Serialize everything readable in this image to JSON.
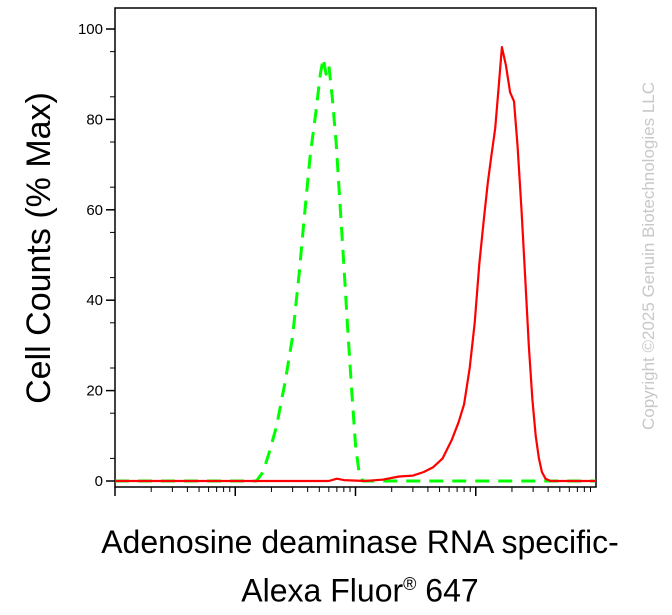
{
  "chart_data": {
    "type": "line",
    "title": "",
    "ylabel": "Cell Counts (% Max)",
    "xlabel_line1": "Adenosine deaminase RNA specific-",
    "xlabel_line2": "Alexa Fluor",
    "xlabel_reg": "®",
    "xlabel_line3": "647",
    "ylim": [
      0,
      100
    ],
    "x_scale": "log",
    "xlim": [
      10,
      100000
    ],
    "grid": false,
    "y_ticks": [
      "0",
      "20",
      "40",
      "60",
      "80",
      "100"
    ],
    "series": [
      {
        "style": "dashed",
        "color": "#00ff00",
        "points": [
          [
            10,
            0
          ],
          [
            100,
            0
          ],
          [
            150,
            0
          ],
          [
            170,
            2
          ],
          [
            190,
            6
          ],
          [
            220,
            12
          ],
          [
            260,
            22
          ],
          [
            300,
            32
          ],
          [
            340,
            46
          ],
          [
            380,
            60
          ],
          [
            420,
            72
          ],
          [
            470,
            82
          ],
          [
            510,
            90
          ],
          [
            540,
            93.5
          ],
          [
            570,
            90
          ],
          [
            600,
            92
          ],
          [
            640,
            85
          ],
          [
            690,
            75
          ],
          [
            740,
            62
          ],
          [
            800,
            48
          ],
          [
            860,
            34
          ],
          [
            930,
            20
          ],
          [
            1000,
            8
          ],
          [
            1070,
            2
          ],
          [
            1150,
            0
          ],
          [
            100000,
            0
          ]
        ]
      },
      {
        "style": "solid",
        "color": "#ff0000",
        "points": [
          [
            10,
            0
          ],
          [
            600,
            0
          ],
          [
            700,
            0.5
          ],
          [
            800,
            0.2
          ],
          [
            1200,
            0
          ],
          [
            1700,
            0.3
          ],
          [
            2300,
            1
          ],
          [
            3000,
            1.2
          ],
          [
            3700,
            2
          ],
          [
            4400,
            3
          ],
          [
            5300,
            5
          ],
          [
            6300,
            9
          ],
          [
            7200,
            13
          ],
          [
            8000,
            17
          ],
          [
            8900,
            25
          ],
          [
            9800,
            35
          ],
          [
            10700,
            48
          ],
          [
            11700,
            58
          ],
          [
            12600,
            66
          ],
          [
            13500,
            72
          ],
          [
            14500,
            78
          ],
          [
            15500,
            87
          ],
          [
            16500,
            96
          ],
          [
            17800,
            92
          ],
          [
            19300,
            86
          ],
          [
            20800,
            84
          ],
          [
            22300,
            74
          ],
          [
            24000,
            60
          ],
          [
            25800,
            45
          ],
          [
            27600,
            30
          ],
          [
            29600,
            18
          ],
          [
            31500,
            10
          ],
          [
            33500,
            5
          ],
          [
            35500,
            2
          ],
          [
            38000,
            0.5
          ],
          [
            42000,
            0
          ],
          [
            100000,
            0
          ]
        ]
      }
    ]
  },
  "watermark": "Copyright ©2025 Genuin Biotechnologies LLC"
}
